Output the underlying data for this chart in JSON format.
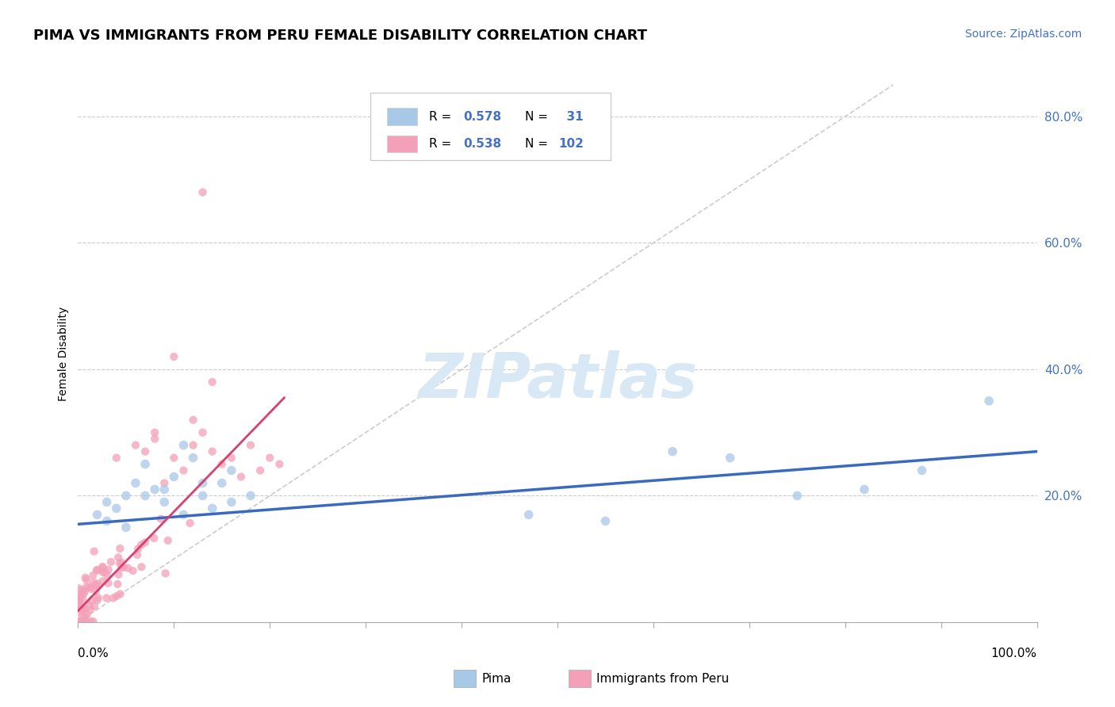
{
  "title": "PIMA VS IMMIGRANTS FROM PERU FEMALE DISABILITY CORRELATION CHART",
  "source": "Source: ZipAtlas.com",
  "ylabel": "Female Disability",
  "xmin": 0.0,
  "xmax": 1.0,
  "ymin": 0.0,
  "ymax": 0.85,
  "pima_R": 0.578,
  "pima_N": 31,
  "peru_R": 0.538,
  "peru_N": 102,
  "pima_color": "#a8c8e8",
  "peru_color": "#f4a0b8",
  "pima_line_color": "#3a6abf",
  "peru_line_color": "#d94070",
  "diagonal_color": "#cccccc",
  "legend_R_color": "#4472c4",
  "watermark_color": "#d8e8f4",
  "background_color": "#ffffff",
  "pima_line_x0": 0.0,
  "pima_line_y0": 0.155,
  "pima_line_x1": 1.0,
  "pima_line_y1": 0.27,
  "peru_line_x0": 0.0,
  "peru_line_y0": 0.018,
  "peru_line_x1": 0.215,
  "peru_line_y1": 0.355
}
